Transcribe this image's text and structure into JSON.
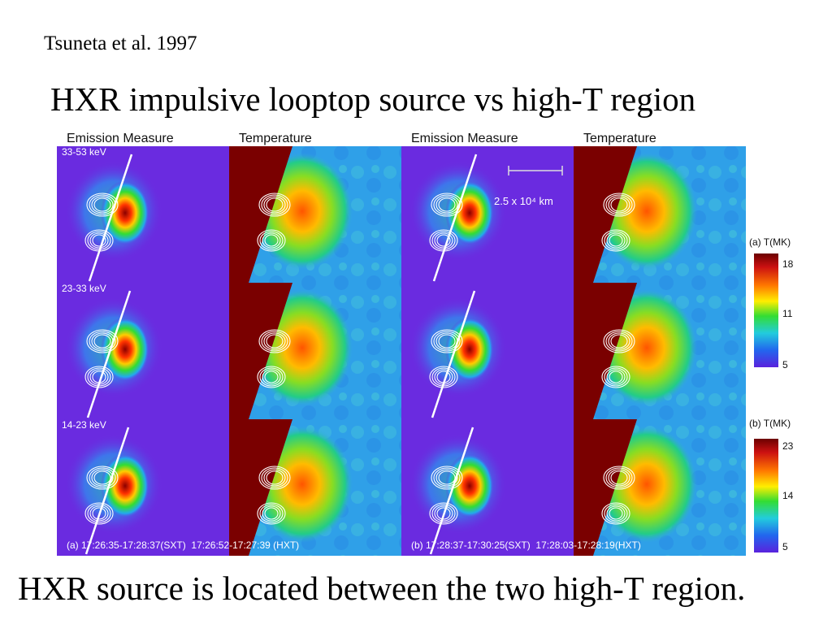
{
  "citation": "Tsuneta et al. 1997",
  "title": "HXR impulsive looptop source vs high-T region",
  "caption": "HXR source is located between the two high-T region.",
  "figure": {
    "column_headers": [
      "Emission Measure",
      "Temperature",
      "Emission Measure",
      "Temperature"
    ],
    "energy_bands": [
      "33-53 keV",
      "23-33 keV",
      "14-23 keV"
    ],
    "scale_bar": "2.5 x 10⁴ km",
    "panel_a_label": "(a) 17:26:35-17:28:37(SXT)  17:26:52-17:27:39 (HXT)",
    "panel_b_label": "(b) 17:28:37-17:30:25(SXT)  17:28:03-17:28:19(HXT)",
    "colorbar_a": {
      "label": "(a) T(MK)",
      "ticks": [
        "18",
        "11",
        "5"
      ]
    },
    "colorbar_b": {
      "label": "(b) T(MK)",
      "ticks": [
        "23",
        "14",
        "5"
      ]
    }
  }
}
